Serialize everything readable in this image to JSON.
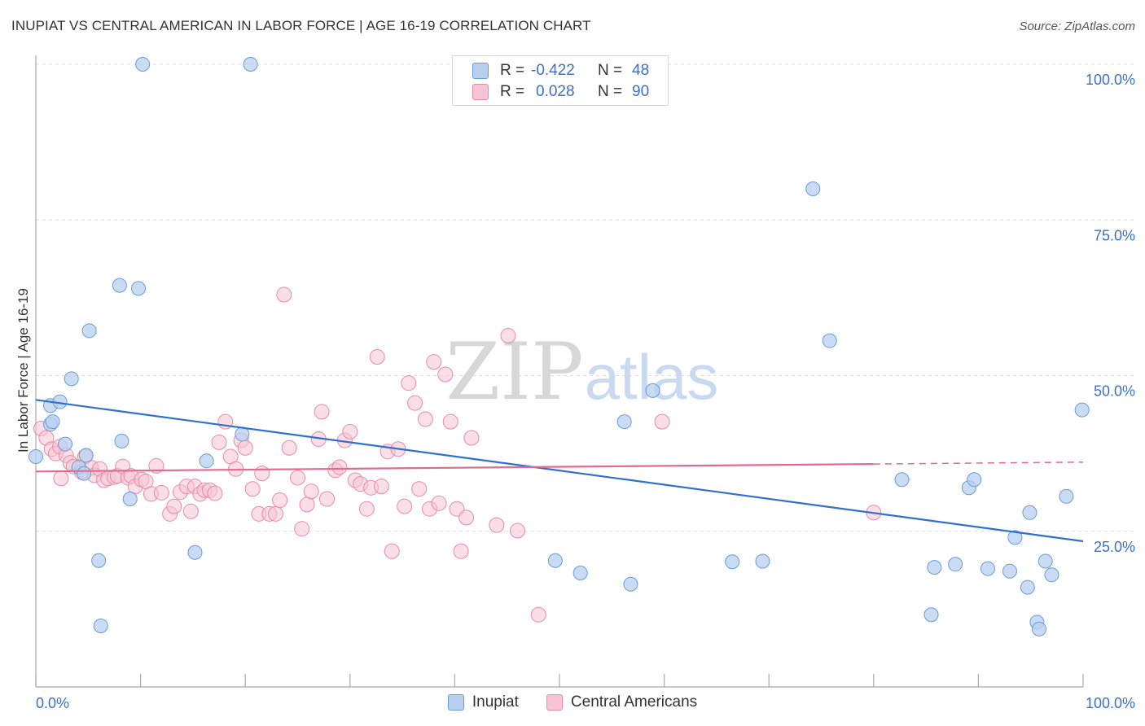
{
  "title": "INUPIAT VS CENTRAL AMERICAN IN LABOR FORCE | AGE 16-19 CORRELATION CHART",
  "source": "Source: ZipAtlas.com",
  "watermark": {
    "zip": "ZIP",
    "atlas": "atlas"
  },
  "colors": {
    "inupiat_fill": "#b8d0f0",
    "inupiat_stroke": "#6a9bd8",
    "inupiat_line": "#2f6fd0",
    "central_fill": "#f8c4d4",
    "central_stroke": "#e88aa8",
    "central_line": "#e06a90",
    "axis_label": "#3b70c4",
    "grid": "#dddddd"
  },
  "legend": {
    "r_label": "R =",
    "n_label": "N =",
    "inupiat": {
      "r": "-0.422",
      "n": "48"
    },
    "central": {
      "r": "0.028",
      "n": "90"
    }
  },
  "bottom_legend": {
    "inupiat": "Inupiat",
    "central": "Central Americans"
  },
  "chart_data": {
    "type": "scatter",
    "title": "INUPIAT VS CENTRAL AMERICAN IN LABOR FORCE | AGE 16-19 CORRELATION CHART",
    "xlabel": "",
    "ylabel": "In Labor Force | Age 16-19",
    "xlim": [
      0,
      100
    ],
    "ylim": [
      0,
      100
    ],
    "x_tick_labels": [
      "0.0%",
      "100.0%"
    ],
    "y_ticks": [
      25,
      50,
      75,
      100
    ],
    "y_tick_labels": [
      "25.0%",
      "50.0%",
      "75.0%",
      "100.0%"
    ],
    "grid": true,
    "legend_position": "top-center",
    "series": [
      {
        "name": "Inupiat",
        "r": -0.422,
        "n": 48,
        "trend": {
          "x": [
            0,
            100
          ],
          "y": [
            46.1,
            23.4
          ]
        },
        "points": [
          [
            0,
            37
          ],
          [
            1.4,
            45.2
          ],
          [
            1.4,
            42.2
          ],
          [
            2.3,
            45.8
          ],
          [
            1.6,
            42.6
          ],
          [
            3.4,
            49.5
          ],
          [
            2.8,
            39.0
          ],
          [
            4.1,
            35.3
          ],
          [
            4.6,
            34.3
          ],
          [
            4.8,
            37.2
          ],
          [
            5.1,
            57.2
          ],
          [
            6.0,
            20.3
          ],
          [
            6.2,
            9.8
          ],
          [
            8.0,
            64.5
          ],
          [
            8.2,
            39.5
          ],
          [
            9.0,
            30.2
          ],
          [
            9.8,
            64.0
          ],
          [
            10.2,
            100
          ],
          [
            15.2,
            21.6
          ],
          [
            16.3,
            36.3
          ],
          [
            19.7,
            40.6
          ],
          [
            20.5,
            100
          ],
          [
            49.6,
            20.3
          ],
          [
            52.0,
            18.3
          ],
          [
            56.2,
            42.6
          ],
          [
            56.8,
            16.5
          ],
          [
            58.9,
            47.6
          ],
          [
            66.5,
            20.1
          ],
          [
            69.4,
            20.2
          ],
          [
            74.2,
            80.0
          ],
          [
            75.8,
            55.6
          ],
          [
            82.7,
            33.3
          ],
          [
            85.5,
            11.6
          ],
          [
            85.8,
            19.2
          ],
          [
            87.8,
            19.7
          ],
          [
            89.1,
            32.0
          ],
          [
            89.6,
            33.3
          ],
          [
            90.9,
            19.0
          ],
          [
            93.0,
            18.6
          ],
          [
            93.5,
            24.0
          ],
          [
            94.7,
            16.0
          ],
          [
            94.9,
            28.0
          ],
          [
            95.6,
            10.4
          ],
          [
            95.8,
            9.3
          ],
          [
            96.4,
            20.2
          ],
          [
            97.0,
            18.0
          ],
          [
            98.4,
            30.6
          ],
          [
            99.9,
            44.5
          ]
        ]
      },
      {
        "name": "Central Americans",
        "r": 0.028,
        "n": 90,
        "trend": {
          "x": [
            0,
            80
          ],
          "y": [
            34.6,
            35.8
          ]
        },
        "trend_dashed": {
          "x": [
            80,
            100
          ],
          "y": [
            35.8,
            36.1
          ]
        },
        "points": [
          [
            0.5,
            41.5
          ],
          [
            1.0,
            40.0
          ],
          [
            1.5,
            38.2
          ],
          [
            1.9,
            37.5
          ],
          [
            2.3,
            38.6
          ],
          [
            2.4,
            33.5
          ],
          [
            2.9,
            37.2
          ],
          [
            3.3,
            36.0
          ],
          [
            3.6,
            35.4
          ],
          [
            4.4,
            34.5
          ],
          [
            4.7,
            37.0
          ],
          [
            5.3,
            35.2
          ],
          [
            5.6,
            34.0
          ],
          [
            6.1,
            35.0
          ],
          [
            6.5,
            33.2
          ],
          [
            6.9,
            33.5
          ],
          [
            7.5,
            33.7
          ],
          [
            7.8,
            33.9
          ],
          [
            8.3,
            35.4
          ],
          [
            8.8,
            33.6
          ],
          [
            9.1,
            33.9
          ],
          [
            9.5,
            32.2
          ],
          [
            10.1,
            33.3
          ],
          [
            10.5,
            33.0
          ],
          [
            11.0,
            31.0
          ],
          [
            11.5,
            35.5
          ],
          [
            12.0,
            31.2
          ],
          [
            12.8,
            27.8
          ],
          [
            13.2,
            29.0
          ],
          [
            13.8,
            31.3
          ],
          [
            14.4,
            32.2
          ],
          [
            14.8,
            28.2
          ],
          [
            15.2,
            32.2
          ],
          [
            15.7,
            31.0
          ],
          [
            16.1,
            31.6
          ],
          [
            16.6,
            31.6
          ],
          [
            17.1,
            31.1
          ],
          [
            17.5,
            39.3
          ],
          [
            18.1,
            42.6
          ],
          [
            18.6,
            37.0
          ],
          [
            19.1,
            35.0
          ],
          [
            19.6,
            39.6
          ],
          [
            20.0,
            38.4
          ],
          [
            20.7,
            31.8
          ],
          [
            21.3,
            27.8
          ],
          [
            21.6,
            34.3
          ],
          [
            22.3,
            27.8
          ],
          [
            22.9,
            27.8
          ],
          [
            23.3,
            30.0
          ],
          [
            23.7,
            63.0
          ],
          [
            24.2,
            38.4
          ],
          [
            25.0,
            33.6
          ],
          [
            25.4,
            25.4
          ],
          [
            25.9,
            29.3
          ],
          [
            26.3,
            31.4
          ],
          [
            27.0,
            39.8
          ],
          [
            27.3,
            44.2
          ],
          [
            27.8,
            30.2
          ],
          [
            28.6,
            34.8
          ],
          [
            29.0,
            35.3
          ],
          [
            29.5,
            39.6
          ],
          [
            30.0,
            41.0
          ],
          [
            30.5,
            33.2
          ],
          [
            31.0,
            32.6
          ],
          [
            31.6,
            28.6
          ],
          [
            32.0,
            32.0
          ],
          [
            32.6,
            53.0
          ],
          [
            33.0,
            32.2
          ],
          [
            33.6,
            37.8
          ],
          [
            34.0,
            21.8
          ],
          [
            34.6,
            38.2
          ],
          [
            35.2,
            29.0
          ],
          [
            35.6,
            48.8
          ],
          [
            36.2,
            45.6
          ],
          [
            36.6,
            31.8
          ],
          [
            37.2,
            43.0
          ],
          [
            37.6,
            28.6
          ],
          [
            38.0,
            52.2
          ],
          [
            38.5,
            29.5
          ],
          [
            39.1,
            50.2
          ],
          [
            39.6,
            42.6
          ],
          [
            40.2,
            28.6
          ],
          [
            40.6,
            21.8
          ],
          [
            41.1,
            27.2
          ],
          [
            41.6,
            40.0
          ],
          [
            44.0,
            26.0
          ],
          [
            45.1,
            56.4
          ],
          [
            46.0,
            25.1
          ],
          [
            48.0,
            11.6
          ],
          [
            80.0,
            28.0
          ],
          [
            59.8,
            42.6
          ]
        ]
      }
    ]
  }
}
